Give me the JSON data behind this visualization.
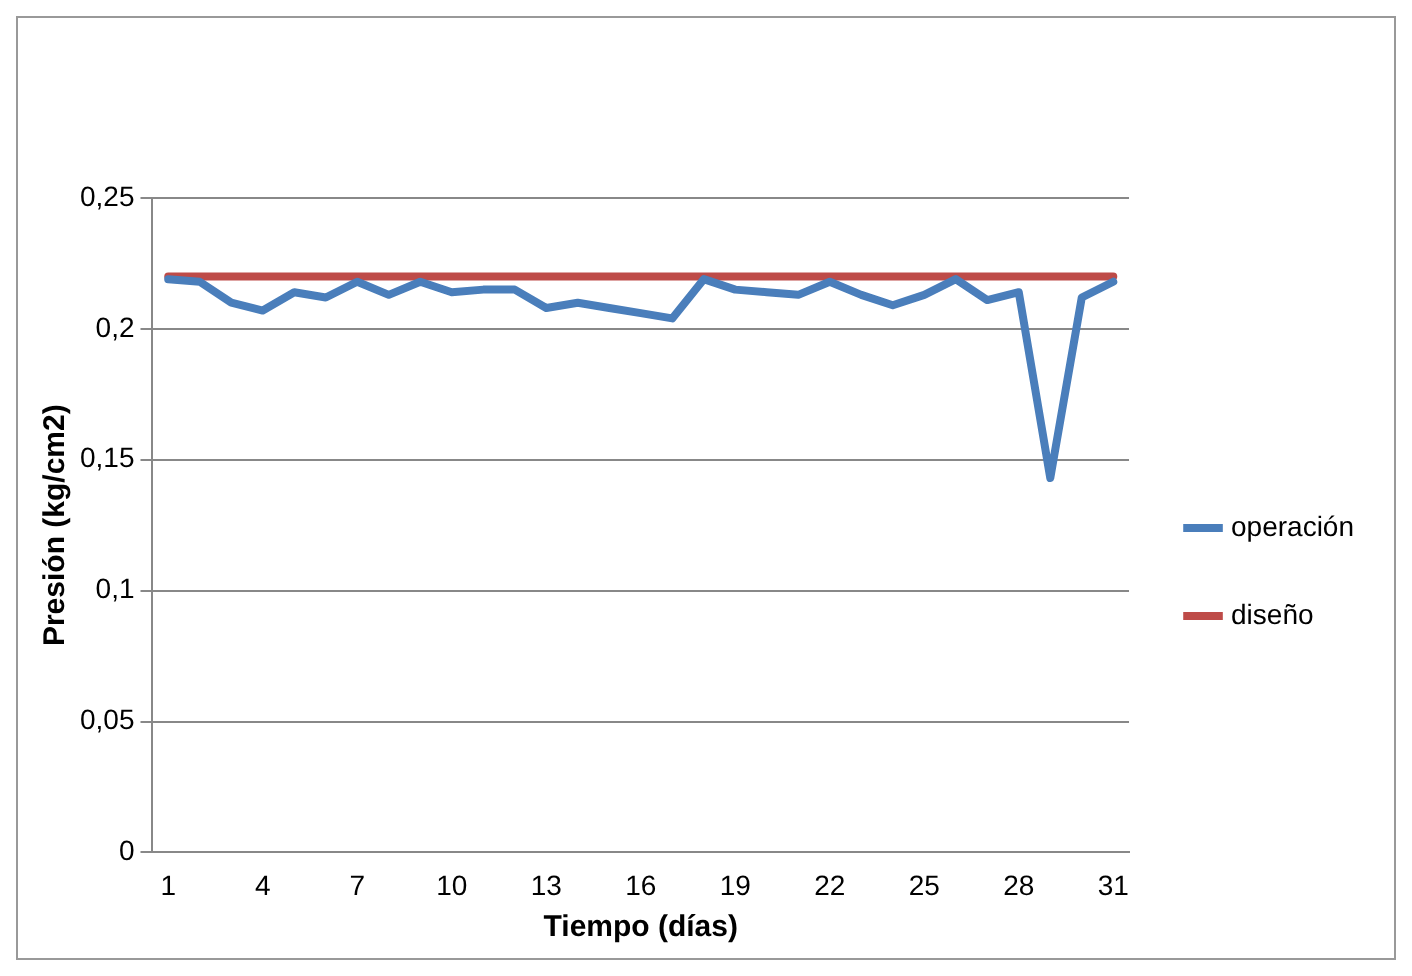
{
  "chart_data": {
    "type": "line",
    "xlabel": "Tiempo (días)",
    "ylabel": "Presión (kg/cm2)",
    "categories": [
      "1",
      null,
      null,
      "4",
      null,
      null,
      "7",
      null,
      null,
      "10",
      null,
      null,
      "13",
      null,
      null,
      "16",
      null,
      null,
      "19",
      null,
      null,
      "22",
      null,
      null,
      "25",
      null,
      null,
      "28",
      null,
      null,
      "31"
    ],
    "series": [
      {
        "name": "operación",
        "color": "#4a7ebb",
        "values": [
          0.219,
          0.218,
          0.21,
          0.207,
          0.214,
          0.212,
          0.218,
          0.213,
          0.218,
          0.214,
          0.215,
          0.215,
          0.208,
          0.21,
          0.208,
          0.206,
          0.204,
          0.219,
          0.215,
          0.214,
          0.213,
          0.218,
          0.213,
          0.209,
          0.213,
          0.219,
          0.211,
          0.214,
          0.143,
          0.212,
          0.218
        ]
      },
      {
        "name": "diseño",
        "color": "#be4b48",
        "values": [
          0.22,
          0.22,
          0.22,
          0.22,
          0.22,
          0.22,
          0.22,
          0.22,
          0.22,
          0.22,
          0.22,
          0.22,
          0.22,
          0.22,
          0.22,
          0.22,
          0.22,
          0.22,
          0.22,
          0.22,
          0.22,
          0.22,
          0.22,
          0.22,
          0.22,
          0.22,
          0.22,
          0.22,
          0.22,
          0.22,
          0.22
        ]
      }
    ],
    "ylim": [
      0,
      0.25
    ],
    "yticks": [
      {
        "value": 0,
        "label": "0"
      },
      {
        "value": 0.05,
        "label": "0,05"
      },
      {
        "value": 0.1,
        "label": "0,1"
      },
      {
        "value": 0.15,
        "label": "0,15"
      },
      {
        "value": 0.2,
        "label": "0,2"
      },
      {
        "value": 0.25,
        "label": "0,25"
      }
    ],
    "grid": "y",
    "legend": "right",
    "marker": "none",
    "line_style": "solid"
  }
}
